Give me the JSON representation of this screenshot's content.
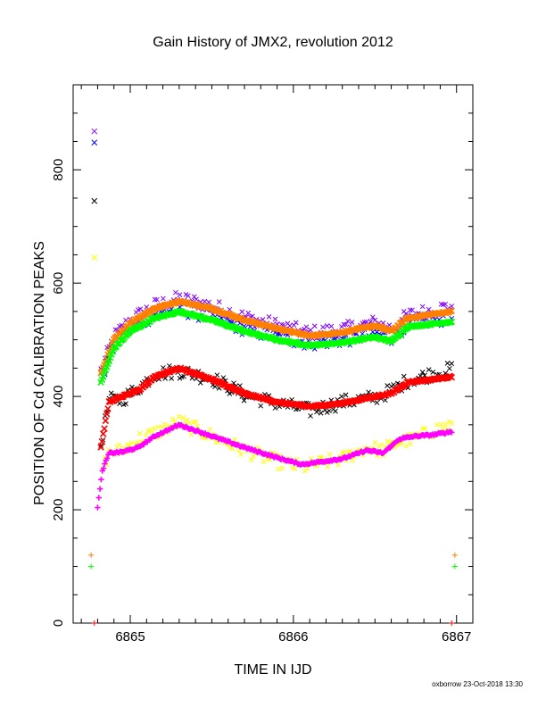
{
  "chart_data": {
    "type": "scatter",
    "title": "Gain History of JMX2, revolution 2012",
    "xlabel": "TIME IN IJD",
    "ylabel": "POSITION OF Cd CALIBRATION PEAKS",
    "xlim": [
      6864.65,
      6867.1
    ],
    "ylim": [
      0,
      950
    ],
    "xticks": [
      6865,
      6866,
      6867
    ],
    "yticks": [
      0,
      200,
      400,
      600,
      800
    ],
    "grid": false,
    "legend": "none",
    "series": [
      {
        "color": "#ff8000",
        "marker": "x",
        "fit": true,
        "x": [
          6864.82,
          6864.9,
          6865.0,
          6865.15,
          6865.3,
          6865.5,
          6865.7,
          6865.9,
          6866.1,
          6866.3,
          6866.5,
          6866.6,
          6866.7,
          6866.85,
          6866.97
        ],
        "y": [
          440,
          500,
          530,
          555,
          568,
          555,
          535,
          520,
          507,
          513,
          525,
          515,
          538,
          545,
          550
        ]
      },
      {
        "color": "#00ff00",
        "marker": "x",
        "fit": true,
        "x": [
          6864.82,
          6864.9,
          6865.0,
          6865.15,
          6865.3,
          6865.5,
          6865.7,
          6865.9,
          6866.1,
          6866.3,
          6866.5,
          6866.6,
          6866.7,
          6866.85,
          6866.97
        ],
        "y": [
          425,
          485,
          515,
          538,
          550,
          535,
          515,
          500,
          490,
          495,
          505,
          497,
          523,
          528,
          532
        ]
      },
      {
        "color": "#0000ff",
        "marker": "x",
        "fit": false,
        "x": [
          6864.82,
          6864.9,
          6865.0,
          6865.15,
          6865.3,
          6865.5,
          6865.7,
          6865.9,
          6866.1,
          6866.3,
          6866.5,
          6866.6,
          6866.7,
          6866.85,
          6866.97
        ],
        "y": [
          430,
          490,
          520,
          545,
          555,
          540,
          520,
          505,
          495,
          500,
          510,
          505,
          528,
          535,
          540
        ]
      },
      {
        "color": "#8000ff",
        "marker": "x",
        "fit": false,
        "x": [
          6864.82,
          6864.9,
          6865.0,
          6865.15,
          6865.3,
          6865.5,
          6865.7,
          6865.9,
          6866.1,
          6866.3,
          6866.5,
          6866.6,
          6866.7,
          6866.85,
          6866.97
        ],
        "y": [
          445,
          505,
          535,
          560,
          573,
          560,
          540,
          525,
          512,
          518,
          530,
          520,
          543,
          552,
          560
        ]
      },
      {
        "color": "#ff0000",
        "marker": "x",
        "fit": true,
        "x": [
          6864.82,
          6864.87,
          6864.95,
          6865.05,
          6865.15,
          6865.3,
          6865.5,
          6865.7,
          6865.9,
          6866.1,
          6866.3,
          6866.5,
          6866.6,
          6866.7,
          6866.85,
          6866.97
        ],
        "y": [
          310,
          390,
          400,
          410,
          435,
          450,
          430,
          405,
          390,
          382,
          388,
          400,
          405,
          425,
          430,
          435
        ]
      },
      {
        "color": "#000000",
        "marker": "x",
        "fit": false,
        "x": [
          6864.82,
          6864.87,
          6864.95,
          6865.05,
          6865.15,
          6865.3,
          6865.5,
          6865.7,
          6865.9,
          6866.1,
          6866.3,
          6866.5,
          6866.6,
          6866.7,
          6866.85,
          6866.97
        ],
        "y": [
          315,
          393,
          395,
          415,
          440,
          445,
          432,
          403,
          388,
          375,
          390,
          398,
          410,
          428,
          440,
          448
        ]
      },
      {
        "color": "#ff00ff",
        "marker": "+",
        "fit": true,
        "x": [
          6864.8,
          6864.83,
          6864.87,
          6864.95,
          6865.05,
          6865.15,
          6865.3,
          6865.5,
          6865.7,
          6865.9,
          6866.05,
          6866.3,
          6866.45,
          6866.55,
          6866.65,
          6866.75,
          6866.85,
          6866.97
        ],
        "y": [
          205,
          270,
          300,
          302,
          310,
          330,
          350,
          330,
          310,
          292,
          280,
          290,
          305,
          300,
          325,
          330,
          332,
          338
        ]
      },
      {
        "color": "#ffff00",
        "marker": "x",
        "fit": false,
        "x": [
          6864.83,
          6864.87,
          6864.95,
          6865.05,
          6865.15,
          6865.3,
          6865.5,
          6865.7,
          6865.9,
          6866.05,
          6866.3,
          6866.45,
          6866.55,
          6866.65,
          6866.75,
          6866.85,
          6866.97
        ],
        "y": [
          275,
          300,
          305,
          325,
          335,
          355,
          330,
          305,
          285,
          275,
          290,
          310,
          305,
          320,
          325,
          340,
          350
        ]
      }
    ],
    "outliers": [
      {
        "x": 6864.78,
        "y": 868,
        "color": "#8000ff",
        "marker": "x"
      },
      {
        "x": 6864.78,
        "y": 848,
        "color": "#0000ff",
        "marker": "x"
      },
      {
        "x": 6864.78,
        "y": 745,
        "color": "#000000",
        "marker": "x"
      },
      {
        "x": 6864.78,
        "y": 645,
        "color": "#ffff00",
        "marker": "x"
      },
      {
        "x": 6864.76,
        "y": 120,
        "color": "#ff8000",
        "marker": "+"
      },
      {
        "x": 6864.76,
        "y": 100,
        "color": "#00ff00",
        "marker": "+"
      },
      {
        "x": 6866.99,
        "y": 120,
        "color": "#ff8000",
        "marker": "+"
      },
      {
        "x": 6866.99,
        "y": 100,
        "color": "#00ff00",
        "marker": "+"
      },
      {
        "x": 6864.78,
        "y": 0,
        "color": "#ff0000",
        "marker": "+"
      },
      {
        "x": 6866.97,
        "y": 0,
        "color": "#ff0000",
        "marker": "+"
      }
    ],
    "footer": "oxborrow 23-Oct-2018 13:30"
  }
}
